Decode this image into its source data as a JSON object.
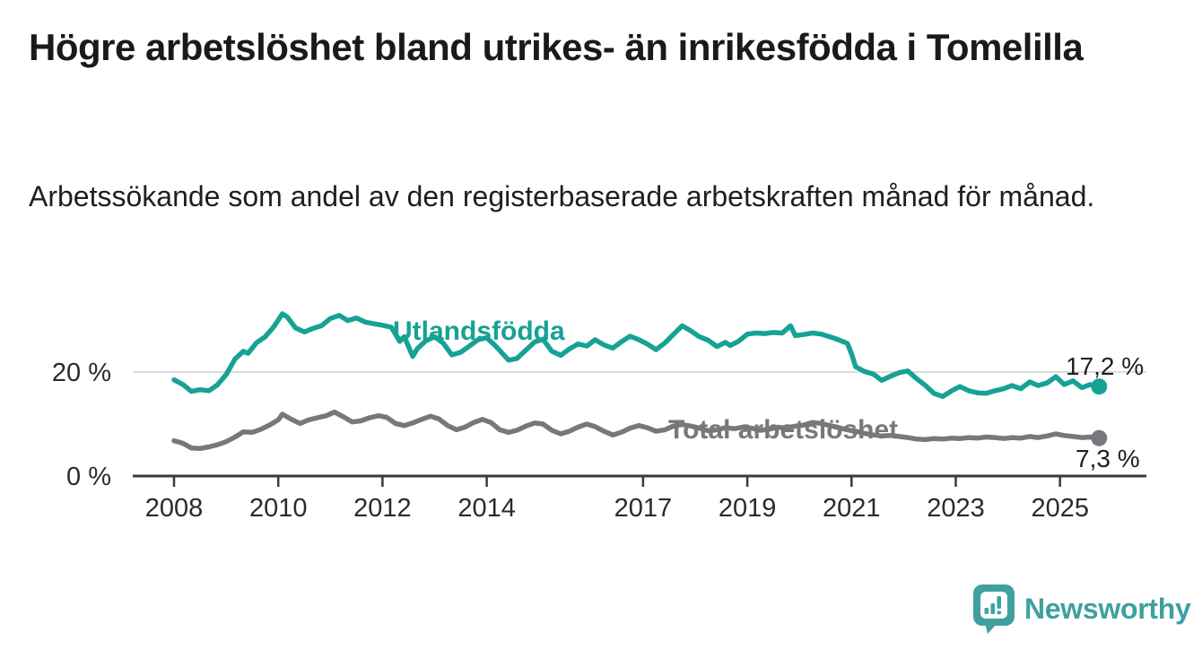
{
  "chart_data": {
    "type": "line",
    "title": "Högre arbetslöshet bland utrikes- än inrikesfödda i Tomelilla",
    "subtitle": "Arbetssökande som andel av den registerbaserade arbetskraften månad för månad.",
    "unit": "%",
    "x_ticks": [
      2008,
      2010,
      2012,
      2014,
      2017,
      2019,
      2021,
      2023,
      2025
    ],
    "x_range": [
      2007.2,
      2026.6
    ],
    "y_ticks": [
      {
        "value": 0,
        "label": "0 %"
      },
      {
        "value": 20,
        "label": "20 %"
      }
    ],
    "y_range": [
      0,
      35
    ],
    "grid": "horizontal line at 20 % only",
    "legend_position": "inline labels on lines",
    "axis_color": "#3a3a3a",
    "grid_color": "#dcdcdc",
    "tick_label_color": "#2b2b2b",
    "series": [
      {
        "name": "Utlandsfödda",
        "label": "Utlandsfödda",
        "color": "#16a294",
        "end_label": "17,2 %",
        "end_value": 17.2,
        "points": [
          [
            2008.0,
            18.5
          ],
          [
            2008.17,
            17.6
          ],
          [
            2008.33,
            16.3
          ],
          [
            2008.5,
            16.6
          ],
          [
            2008.67,
            16.4
          ],
          [
            2008.83,
            17.5
          ],
          [
            2009.0,
            19.5
          ],
          [
            2009.17,
            22.5
          ],
          [
            2009.33,
            24.0
          ],
          [
            2009.42,
            23.6
          ],
          [
            2009.58,
            25.6
          ],
          [
            2009.75,
            26.8
          ],
          [
            2009.92,
            28.8
          ],
          [
            2010.08,
            31.2
          ],
          [
            2010.17,
            30.6
          ],
          [
            2010.33,
            28.5
          ],
          [
            2010.5,
            27.7
          ],
          [
            2010.67,
            28.4
          ],
          [
            2010.83,
            28.9
          ],
          [
            2011.0,
            30.3
          ],
          [
            2011.17,
            30.9
          ],
          [
            2011.33,
            29.9
          ],
          [
            2011.5,
            30.4
          ],
          [
            2011.67,
            29.6
          ],
          [
            2011.83,
            29.3
          ],
          [
            2012.0,
            29.0
          ],
          [
            2012.17,
            28.6
          ],
          [
            2012.33,
            25.9
          ],
          [
            2012.42,
            26.8
          ],
          [
            2012.58,
            23.0
          ],
          [
            2012.67,
            24.5
          ],
          [
            2012.83,
            26.0
          ],
          [
            2013.0,
            26.8
          ],
          [
            2013.17,
            25.5
          ],
          [
            2013.33,
            23.3
          ],
          [
            2013.5,
            23.8
          ],
          [
            2013.67,
            25.0
          ],
          [
            2013.83,
            26.2
          ],
          [
            2014.0,
            26.6
          ],
          [
            2014.17,
            25.0
          ],
          [
            2014.42,
            22.3
          ],
          [
            2014.58,
            22.6
          ],
          [
            2014.75,
            24.2
          ],
          [
            2014.92,
            25.8
          ],
          [
            2015.08,
            26.3
          ],
          [
            2015.25,
            24.0
          ],
          [
            2015.42,
            23.2
          ],
          [
            2015.58,
            24.4
          ],
          [
            2015.75,
            25.4
          ],
          [
            2015.92,
            25.0
          ],
          [
            2016.08,
            26.2
          ],
          [
            2016.25,
            25.2
          ],
          [
            2016.42,
            24.6
          ],
          [
            2016.58,
            25.8
          ],
          [
            2016.75,
            26.9
          ],
          [
            2016.92,
            26.2
          ],
          [
            2017.08,
            25.4
          ],
          [
            2017.25,
            24.3
          ],
          [
            2017.42,
            25.6
          ],
          [
            2017.58,
            27.2
          ],
          [
            2017.75,
            28.9
          ],
          [
            2017.92,
            27.9
          ],
          [
            2018.08,
            26.8
          ],
          [
            2018.25,
            26.1
          ],
          [
            2018.42,
            24.9
          ],
          [
            2018.58,
            25.7
          ],
          [
            2018.67,
            25.1
          ],
          [
            2018.83,
            25.9
          ],
          [
            2019.0,
            27.3
          ],
          [
            2019.17,
            27.5
          ],
          [
            2019.33,
            27.4
          ],
          [
            2019.5,
            27.6
          ],
          [
            2019.67,
            27.5
          ],
          [
            2019.83,
            28.9
          ],
          [
            2019.92,
            27.0
          ],
          [
            2020.08,
            27.2
          ],
          [
            2020.25,
            27.5
          ],
          [
            2020.42,
            27.3
          ],
          [
            2020.58,
            26.8
          ],
          [
            2020.75,
            26.2
          ],
          [
            2020.92,
            25.5
          ],
          [
            2021.0,
            23.5
          ],
          [
            2021.08,
            21.0
          ],
          [
            2021.25,
            20.1
          ],
          [
            2021.42,
            19.6
          ],
          [
            2021.58,
            18.4
          ],
          [
            2021.75,
            19.2
          ],
          [
            2021.92,
            19.9
          ],
          [
            2022.08,
            20.2
          ],
          [
            2022.25,
            18.7
          ],
          [
            2022.42,
            17.4
          ],
          [
            2022.58,
            15.9
          ],
          [
            2022.75,
            15.3
          ],
          [
            2022.92,
            16.4
          ],
          [
            2023.08,
            17.2
          ],
          [
            2023.25,
            16.4
          ],
          [
            2023.42,
            16.0
          ],
          [
            2023.58,
            15.9
          ],
          [
            2023.75,
            16.4
          ],
          [
            2023.92,
            16.8
          ],
          [
            2024.08,
            17.4
          ],
          [
            2024.25,
            16.8
          ],
          [
            2024.42,
            18.1
          ],
          [
            2024.58,
            17.4
          ],
          [
            2024.75,
            17.9
          ],
          [
            2024.92,
            19.1
          ],
          [
            2025.08,
            17.6
          ],
          [
            2025.25,
            18.3
          ],
          [
            2025.42,
            17.0
          ],
          [
            2025.58,
            17.6
          ],
          [
            2025.75,
            17.2
          ]
        ]
      },
      {
        "name": "Total arbetslöshet",
        "label": "Total arbetslöshet",
        "color": "#77787b",
        "end_label": "7,3 %",
        "end_value": 7.3,
        "points": [
          [
            2008.0,
            6.8
          ],
          [
            2008.17,
            6.3
          ],
          [
            2008.33,
            5.4
          ],
          [
            2008.5,
            5.3
          ],
          [
            2008.67,
            5.6
          ],
          [
            2008.83,
            6.0
          ],
          [
            2009.0,
            6.6
          ],
          [
            2009.17,
            7.5
          ],
          [
            2009.33,
            8.5
          ],
          [
            2009.5,
            8.4
          ],
          [
            2009.67,
            9.0
          ],
          [
            2009.83,
            9.8
          ],
          [
            2010.0,
            10.8
          ],
          [
            2010.08,
            11.9
          ],
          [
            2010.25,
            10.9
          ],
          [
            2010.42,
            10.1
          ],
          [
            2010.58,
            10.8
          ],
          [
            2010.75,
            11.2
          ],
          [
            2010.92,
            11.6
          ],
          [
            2011.08,
            12.3
          ],
          [
            2011.25,
            11.4
          ],
          [
            2011.42,
            10.4
          ],
          [
            2011.58,
            10.6
          ],
          [
            2011.75,
            11.2
          ],
          [
            2011.92,
            11.6
          ],
          [
            2012.08,
            11.3
          ],
          [
            2012.25,
            10.1
          ],
          [
            2012.42,
            9.7
          ],
          [
            2012.58,
            10.2
          ],
          [
            2012.75,
            10.9
          ],
          [
            2012.92,
            11.5
          ],
          [
            2013.08,
            11.0
          ],
          [
            2013.25,
            9.7
          ],
          [
            2013.42,
            8.9
          ],
          [
            2013.58,
            9.4
          ],
          [
            2013.75,
            10.3
          ],
          [
            2013.92,
            10.9
          ],
          [
            2014.08,
            10.3
          ],
          [
            2014.25,
            8.9
          ],
          [
            2014.42,
            8.4
          ],
          [
            2014.58,
            8.8
          ],
          [
            2014.75,
            9.6
          ],
          [
            2014.92,
            10.2
          ],
          [
            2015.08,
            10.0
          ],
          [
            2015.25,
            8.8
          ],
          [
            2015.42,
            8.1
          ],
          [
            2015.58,
            8.6
          ],
          [
            2015.75,
            9.4
          ],
          [
            2015.92,
            10.0
          ],
          [
            2016.08,
            9.5
          ],
          [
            2016.25,
            8.6
          ],
          [
            2016.42,
            7.9
          ],
          [
            2016.58,
            8.4
          ],
          [
            2016.75,
            9.2
          ],
          [
            2016.92,
            9.7
          ],
          [
            2017.08,
            9.3
          ],
          [
            2017.25,
            8.6
          ],
          [
            2017.42,
            8.9
          ],
          [
            2017.58,
            9.6
          ],
          [
            2017.75,
            9.9
          ],
          [
            2017.92,
            9.6
          ],
          [
            2018.08,
            9.2
          ],
          [
            2018.25,
            8.7
          ],
          [
            2018.42,
            8.9
          ],
          [
            2018.58,
            9.3
          ],
          [
            2018.75,
            9.1
          ],
          [
            2018.92,
            9.4
          ],
          [
            2019.08,
            9.2
          ],
          [
            2019.25,
            8.8
          ],
          [
            2019.42,
            9.0
          ],
          [
            2019.58,
            9.4
          ],
          [
            2019.75,
            9.2
          ],
          [
            2019.92,
            9.6
          ],
          [
            2020.08,
            9.8
          ],
          [
            2020.25,
            10.3
          ],
          [
            2020.42,
            10.1
          ],
          [
            2020.58,
            9.7
          ],
          [
            2020.75,
            9.3
          ],
          [
            2020.92,
            8.9
          ],
          [
            2021.08,
            8.6
          ],
          [
            2021.25,
            8.2
          ],
          [
            2021.42,
            7.9
          ],
          [
            2021.58,
            7.7
          ],
          [
            2021.75,
            7.8
          ],
          [
            2021.92,
            7.6
          ],
          [
            2022.08,
            7.4
          ],
          [
            2022.25,
            7.1
          ],
          [
            2022.42,
            7.0
          ],
          [
            2022.58,
            7.2
          ],
          [
            2022.75,
            7.1
          ],
          [
            2022.92,
            7.3
          ],
          [
            2023.08,
            7.2
          ],
          [
            2023.25,
            7.4
          ],
          [
            2023.42,
            7.3
          ],
          [
            2023.58,
            7.5
          ],
          [
            2023.75,
            7.4
          ],
          [
            2023.92,
            7.2
          ],
          [
            2024.08,
            7.4
          ],
          [
            2024.25,
            7.3
          ],
          [
            2024.42,
            7.6
          ],
          [
            2024.58,
            7.4
          ],
          [
            2024.75,
            7.7
          ],
          [
            2024.92,
            8.1
          ],
          [
            2025.08,
            7.8
          ],
          [
            2025.25,
            7.6
          ],
          [
            2025.42,
            7.4
          ],
          [
            2025.58,
            7.5
          ],
          [
            2025.75,
            7.3
          ]
        ]
      }
    ]
  },
  "footer": {
    "brand": "Newsworthy",
    "logo_icon": "newsworthy-speech-bubble-bar-chart-icon",
    "brand_color": "#3fa0a0"
  }
}
